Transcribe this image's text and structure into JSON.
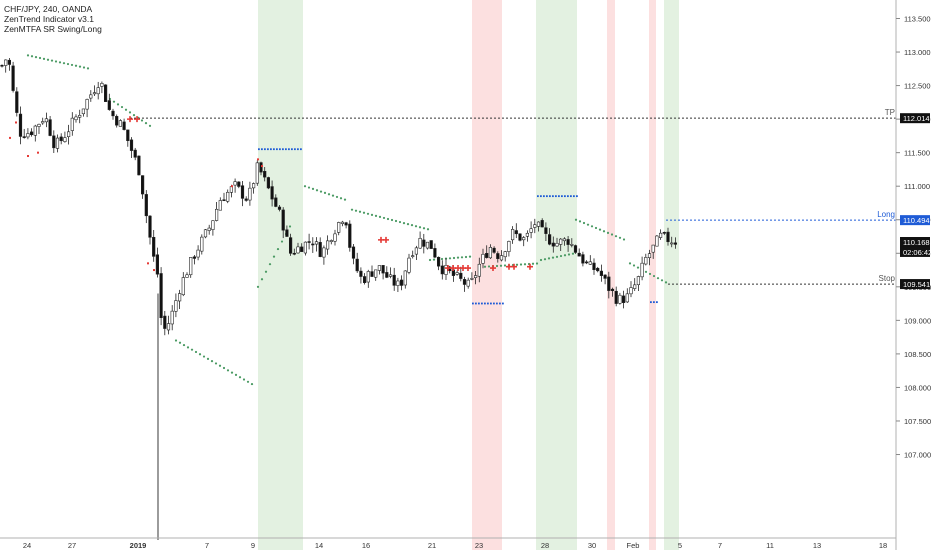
{
  "header": {
    "symbol_line": "CHF/JPY, 240, OANDA",
    "indicator_1": "ZenTrend Indicator v3.1",
    "indicator_2": "ZenMTFA SR Swing/Long"
  },
  "colors": {
    "candle_up": "#ffffff",
    "candle_down": "#111111",
    "candle_wick": "#222222",
    "green_band": "#e3f1e1",
    "red_band": "#fce0e0",
    "trail_dots": "#4a9a63",
    "red_marks": "#e53935",
    "blue_lines": "#1e5bd6",
    "tag_dark": "#111111",
    "tag_blue": "#1e5bd6"
  },
  "chart_data": {
    "type": "candlestick",
    "symbol": "CHF/JPY",
    "timeframe": "240",
    "source": "OANDA",
    "y_axis_ticks": [
      107.0,
      107.5,
      108.0,
      108.5,
      109.0,
      109.5,
      110.0,
      110.5,
      111.0,
      111.5,
      112.0,
      112.5,
      113.0,
      113.5
    ],
    "x_axis_ticks": [
      "24",
      "27",
      "2019",
      "7",
      "9",
      "14",
      "16",
      "21",
      "23",
      "28",
      "30",
      "Feb",
      "5",
      "7",
      "11",
      "13",
      "18"
    ],
    "ylim": [
      106.9,
      113.9
    ],
    "price_tags": [
      {
        "value": "113.500"
      },
      {
        "value": "112.014",
        "label": "TP"
      },
      {
        "value": "110.494",
        "label": "Long"
      },
      {
        "value": "110.168"
      },
      {
        "value": "02:06:42"
      },
      {
        "value": "109.541",
        "label": "Stop"
      }
    ],
    "horizontal_levels": [
      {
        "name": "TP",
        "value": 112.014
      },
      {
        "name": "Long",
        "value": 110.494
      },
      {
        "name": "Stop",
        "value": 109.541
      }
    ],
    "last_price": 110.168,
    "countdown": "02:06:42"
  }
}
